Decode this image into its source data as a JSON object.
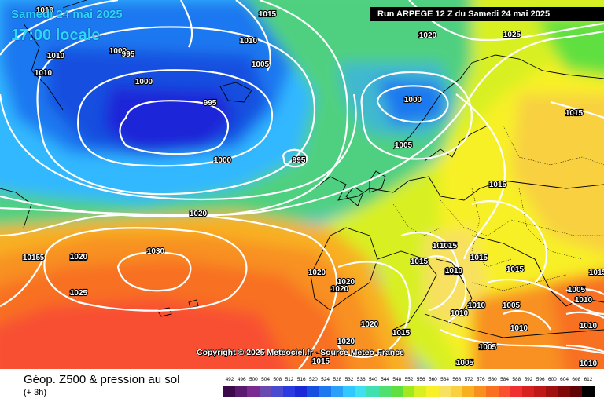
{
  "header": {
    "date": "Samedi 24 mai 2025",
    "local_time": "17:00 locale",
    "run": "Run ARPEGE 12 Z du Samedi 24 mai 2025"
  },
  "credit": "Copyright © 2025 Meteociel.fr - Source Meteo-France",
  "footer": {
    "title": "Géop. Z500 & pression au sol",
    "subtitle": "(+ 3h)"
  },
  "legend": {
    "values": [
      "492",
      "496",
      "500",
      "504",
      "508",
      "512",
      "516",
      "520",
      "524",
      "528",
      "532",
      "536",
      "540",
      "544",
      "548",
      "552",
      "556",
      "560",
      "564",
      "568",
      "572",
      "576",
      "580",
      "584",
      "588",
      "592",
      "596",
      "600",
      "604",
      "608",
      "612"
    ],
    "colors": [
      "#3a0a4a",
      "#5a1a70",
      "#7a2a90",
      "#6a4ab0",
      "#4a4ad0",
      "#2a3ae0",
      "#1a28d8",
      "#1550e0",
      "#1e78f0",
      "#2aa0f8",
      "#30c8ff",
      "#40e0f0",
      "#40e0b0",
      "#50e070",
      "#60e040",
      "#a0e820",
      "#d8f020",
      "#f8f028",
      "#f8e060",
      "#f8d040",
      "#f8b020",
      "#f89020",
      "#f87020",
      "#f85030",
      "#f03030",
      "#d82020",
      "#c01818",
      "#a01010",
      "#800808",
      "#600404",
      "#000000"
    ]
  },
  "isobar_labels": [
    "1015",
    "1010",
    "1010",
    "1010",
    "1000",
    "995",
    "1000",
    "995",
    "1010",
    "1005",
    "1000",
    "1000",
    "1005",
    "995",
    "1020",
    "1025",
    "1015",
    "1000",
    "1005",
    "1020",
    "1015",
    "1015",
    "1030",
    "1015",
    "1020",
    "1025",
    "1020",
    "1020",
    "1020",
    "1015",
    "1015",
    "1015",
    "1015",
    "1020",
    "1015",
    "1015",
    "1015",
    "1010",
    "1015",
    "1010",
    "1005",
    "1015",
    "1015",
    "1015",
    "1015",
    "1010",
    "1010",
    "1010",
    "1020",
    "1005",
    "1010",
    "1010",
    "1005",
    "1005"
  ]
}
